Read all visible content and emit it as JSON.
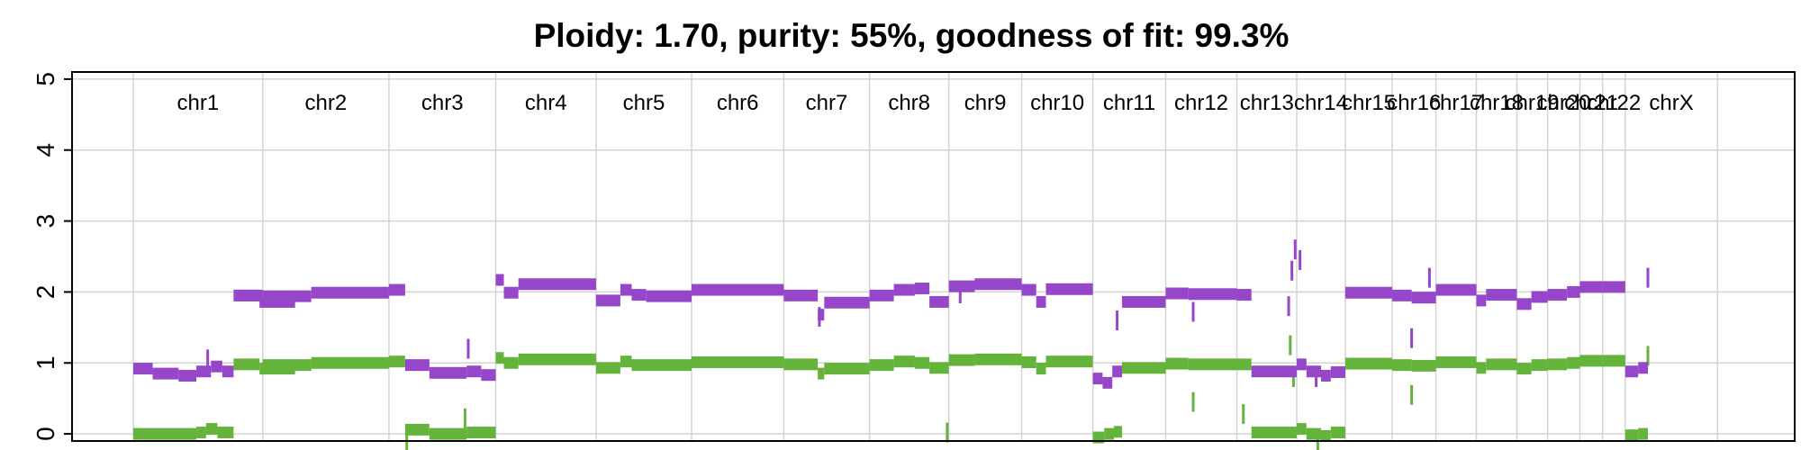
{
  "chart_data": {
    "type": "scatter",
    "title": "Ploidy: 1.70, purity: 55%, goodness of fit: 99.3%",
    "xlabel": "",
    "ylabel": "",
    "ylim": [
      -0.1,
      5.1
    ],
    "yticks": [
      0,
      1,
      2,
      3,
      4,
      5
    ],
    "ytick_labels": [
      "0",
      "1",
      "2",
      "3",
      "4",
      "5"
    ],
    "grid": true,
    "legend": "none",
    "colors": {
      "total": "#9646c8",
      "minor": "#64b43c",
      "grid": "#d3d3d3",
      "frame": "#000000"
    },
    "genome_range": [
      0,
      100
    ],
    "chromosomes": [
      {
        "name": "chr1",
        "start": 0.0,
        "end": 8.0
      },
      {
        "name": "chr2",
        "start": 8.0,
        "end": 15.8
      },
      {
        "name": "chr3",
        "start": 15.8,
        "end": 22.4
      },
      {
        "name": "chr4",
        "start": 22.4,
        "end": 28.6
      },
      {
        "name": "chr5",
        "start": 28.6,
        "end": 34.5
      },
      {
        "name": "chr6",
        "start": 34.5,
        "end": 40.2
      },
      {
        "name": "chr7",
        "start": 40.2,
        "end": 45.5
      },
      {
        "name": "chr8",
        "start": 45.5,
        "end": 50.4
      },
      {
        "name": "chr9",
        "start": 50.4,
        "end": 54.9
      },
      {
        "name": "chr10",
        "start": 54.9,
        "end": 59.3
      },
      {
        "name": "chr11",
        "start": 59.3,
        "end": 63.8
      },
      {
        "name": "chr12",
        "start": 63.8,
        "end": 68.2
      },
      {
        "name": "chr13",
        "start": 68.2,
        "end": 71.9
      },
      {
        "name": "chr14",
        "start": 71.9,
        "end": 74.9
      },
      {
        "name": "chr15",
        "start": 74.9,
        "end": 77.8
      },
      {
        "name": "chr16",
        "start": 77.8,
        "end": 80.5
      },
      {
        "name": "chr17",
        "start": 80.5,
        "end": 83.0
      },
      {
        "name": "chr18",
        "start": 83.0,
        "end": 85.5
      },
      {
        "name": "chr19",
        "start": 85.5,
        "end": 87.4
      },
      {
        "name": "chr20",
        "start": 87.4,
        "end": 89.4
      },
      {
        "name": "chr21",
        "start": 89.4,
        "end": 90.8
      },
      {
        "name": "chr22",
        "start": 90.8,
        "end": 92.2
      },
      {
        "name": "chrX",
        "start": 92.2,
        "end": 97.9
      }
    ],
    "series": [
      {
        "name": "",
        "color": "#9646c8",
        "segments": [
          [
            0.0,
            1.2,
            0.92
          ],
          [
            1.2,
            2.8,
            0.85
          ],
          [
            2.8,
            3.9,
            0.82
          ],
          [
            3.9,
            4.8,
            0.88
          ],
          [
            4.8,
            5.5,
            0.95
          ],
          [
            5.5,
            6.2,
            0.88
          ],
          [
            6.2,
            8.0,
            1.95
          ],
          [
            6.2,
            7.8,
            1.95
          ],
          [
            7.8,
            10.0,
            1.86
          ],
          [
            8.0,
            11.0,
            1.94
          ],
          [
            11.0,
            15.8,
            1.99
          ],
          [
            15.8,
            16.8,
            2.03
          ],
          [
            16.8,
            18.3,
            0.97
          ],
          [
            18.3,
            20.6,
            0.86
          ],
          [
            20.6,
            21.5,
            0.88
          ],
          [
            21.5,
            22.4,
            0.83
          ],
          [
            22.4,
            22.9,
            2.17
          ],
          [
            22.9,
            23.8,
            1.99
          ],
          [
            23.8,
            28.6,
            2.11
          ],
          [
            28.6,
            30.1,
            1.88
          ],
          [
            30.1,
            30.8,
            2.03
          ],
          [
            30.8,
            31.7,
            1.96
          ],
          [
            31.7,
            34.5,
            1.94
          ],
          [
            34.5,
            40.2,
            2.03
          ],
          [
            40.2,
            42.3,
            1.95
          ],
          [
            42.3,
            42.7,
            1.68
          ],
          [
            42.7,
            45.5,
            1.85
          ],
          [
            45.5,
            47.0,
            1.95
          ],
          [
            47.0,
            48.3,
            2.03
          ],
          [
            48.3,
            49.2,
            2.05
          ],
          [
            49.2,
            50.4,
            1.86
          ],
          [
            50.4,
            52.0,
            2.08
          ],
          [
            52.0,
            54.9,
            2.11
          ],
          [
            54.9,
            55.8,
            2.03
          ],
          [
            55.8,
            56.4,
            1.86
          ],
          [
            56.4,
            59.3,
            2.04
          ],
          [
            59.3,
            59.9,
            0.78
          ],
          [
            59.9,
            60.5,
            0.72
          ],
          [
            60.5,
            61.1,
            0.88
          ],
          [
            61.1,
            63.8,
            1.86
          ],
          [
            63.8,
            65.2,
            1.98
          ],
          [
            65.2,
            68.2,
            1.97
          ],
          [
            68.2,
            69.1,
            1.96
          ],
          [
            69.1,
            71.9,
            0.88
          ],
          [
            71.9,
            72.5,
            0.98
          ],
          [
            72.5,
            73.4,
            0.88
          ],
          [
            73.4,
            74.0,
            0.82
          ],
          [
            74.0,
            74.9,
            0.87
          ],
          [
            74.9,
            77.8,
            1.99
          ],
          [
            77.8,
            79.0,
            1.95
          ],
          [
            79.0,
            80.5,
            1.92
          ],
          [
            80.5,
            83.0,
            2.03
          ],
          [
            83.0,
            83.6,
            1.88
          ],
          [
            83.6,
            85.5,
            1.96
          ],
          [
            85.5,
            86.4,
            1.83
          ],
          [
            86.4,
            87.4,
            1.93
          ],
          [
            87.4,
            88.6,
            1.96
          ],
          [
            88.6,
            89.4,
            2.0
          ],
          [
            89.4,
            90.8,
            2.07
          ],
          [
            90.8,
            92.2,
            2.07
          ],
          [
            92.2,
            93.0,
            0.88
          ],
          [
            93.0,
            93.6,
            0.93
          ]
        ],
        "outliers": [
          [
            4.6,
            1.05
          ],
          [
            20.7,
            1.2
          ],
          [
            42.4,
            1.65
          ],
          [
            51.1,
            1.98
          ],
          [
            60.8,
            1.6
          ],
          [
            65.5,
            1.72
          ],
          [
            71.4,
            1.8
          ],
          [
            71.6,
            2.3
          ],
          [
            71.8,
            2.6
          ],
          [
            72.1,
            2.45
          ],
          [
            73.1,
            0.8
          ],
          [
            79.0,
            1.35
          ],
          [
            80.1,
            2.2
          ],
          [
            93.6,
            2.2
          ]
        ]
      },
      {
        "name": "",
        "color": "#64b43c",
        "segments": [
          [
            0.0,
            3.9,
            0.0
          ],
          [
            3.9,
            4.5,
            0.02
          ],
          [
            4.5,
            5.2,
            0.07
          ],
          [
            5.2,
            6.2,
            0.02
          ],
          [
            6.2,
            7.8,
            0.98
          ],
          [
            7.8,
            10.0,
            0.92
          ],
          [
            8.0,
            11.0,
            0.97
          ],
          [
            11.0,
            15.8,
            1.0
          ],
          [
            15.8,
            16.8,
            1.02
          ],
          [
            16.8,
            18.3,
            0.06
          ],
          [
            18.3,
            20.6,
            0.0
          ],
          [
            20.6,
            22.4,
            0.02
          ],
          [
            22.4,
            22.9,
            1.07
          ],
          [
            22.9,
            23.8,
            1.0
          ],
          [
            23.8,
            28.6,
            1.05
          ],
          [
            28.6,
            30.1,
            0.93
          ],
          [
            30.1,
            30.8,
            1.02
          ],
          [
            30.8,
            34.5,
            0.97
          ],
          [
            34.5,
            40.2,
            1.01
          ],
          [
            40.2,
            42.3,
            0.98
          ],
          [
            42.3,
            42.7,
            0.85
          ],
          [
            42.7,
            45.5,
            0.92
          ],
          [
            45.5,
            47.0,
            0.97
          ],
          [
            47.0,
            48.3,
            1.02
          ],
          [
            48.3,
            49.2,
            1.0
          ],
          [
            49.2,
            50.4,
            0.93
          ],
          [
            50.4,
            52.0,
            1.04
          ],
          [
            52.0,
            54.9,
            1.05
          ],
          [
            54.9,
            55.8,
            1.01
          ],
          [
            55.8,
            56.4,
            0.92
          ],
          [
            56.4,
            59.3,
            1.02
          ],
          [
            59.3,
            60.0,
            -0.05
          ],
          [
            60.0,
            60.6,
            0.0
          ],
          [
            60.6,
            61.1,
            0.03
          ],
          [
            61.1,
            63.8,
            0.93
          ],
          [
            63.8,
            65.2,
            0.99
          ],
          [
            65.2,
            68.2,
            0.98
          ],
          [
            68.2,
            69.1,
            0.98
          ],
          [
            69.1,
            71.9,
            0.02
          ],
          [
            71.9,
            72.5,
            0.07
          ],
          [
            72.5,
            73.4,
            0.0
          ],
          [
            73.4,
            74.0,
            -0.03
          ],
          [
            74.0,
            74.9,
            0.02
          ],
          [
            74.9,
            77.8,
            0.99
          ],
          [
            77.8,
            79.0,
            0.97
          ],
          [
            79.0,
            80.5,
            0.96
          ],
          [
            80.5,
            83.0,
            1.01
          ],
          [
            83.0,
            83.6,
            0.93
          ],
          [
            83.6,
            85.5,
            0.98
          ],
          [
            85.5,
            86.4,
            0.92
          ],
          [
            86.4,
            87.4,
            0.97
          ],
          [
            87.4,
            88.6,
            0.98
          ],
          [
            88.6,
            89.4,
            1.0
          ],
          [
            89.4,
            90.8,
            1.03
          ],
          [
            90.8,
            92.2,
            1.03
          ],
          [
            92.2,
            93.0,
            -0.02
          ],
          [
            93.0,
            93.6,
            0.0
          ]
        ],
        "outliers": [
          [
            16.9,
            -0.12
          ],
          [
            20.5,
            0.22
          ],
          [
            50.3,
            0.02
          ],
          [
            65.5,
            0.45
          ],
          [
            68.6,
            0.28
          ],
          [
            71.5,
            1.25
          ],
          [
            71.7,
            0.8
          ],
          [
            73.2,
            -0.15
          ],
          [
            79.0,
            0.55
          ],
          [
            93.6,
            1.1
          ]
        ]
      }
    ]
  }
}
